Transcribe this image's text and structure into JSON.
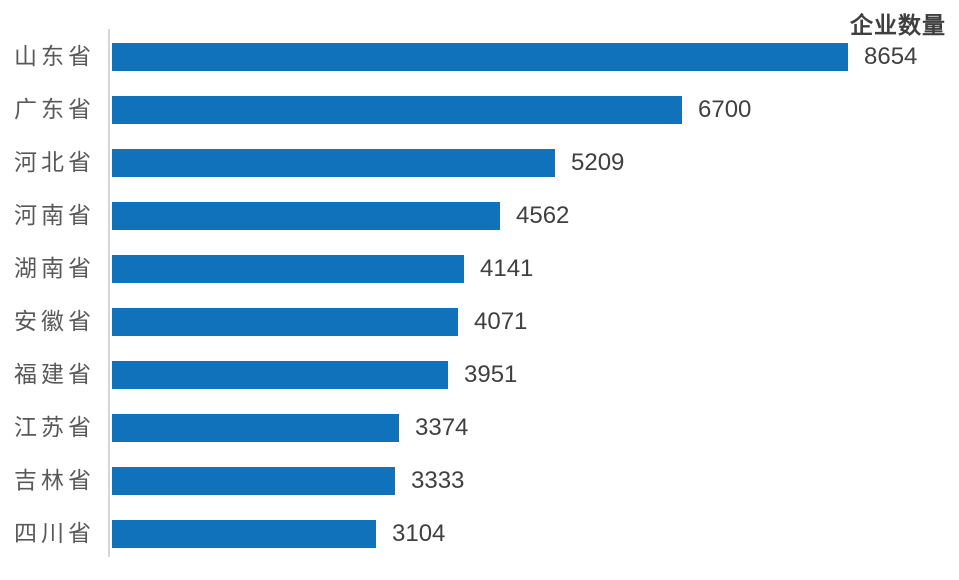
{
  "chart_data": {
    "type": "bar",
    "orientation": "horizontal",
    "title": "企业数量",
    "categories": [
      "山东省",
      "广东省",
      "河北省",
      "河南省",
      "湖南省",
      "安徽省",
      "福建省",
      "江苏省",
      "吉林省",
      "四川省"
    ],
    "values": [
      8654,
      6700,
      5209,
      4562,
      4141,
      4071,
      3951,
      3374,
      3333,
      3104
    ],
    "data_labels": true,
    "legend_position": "top-right",
    "grid": false,
    "axis": "category-axis-left-only",
    "colors": {
      "bar": "#1172bc",
      "category_label": "#595959",
      "value_label": "#404040",
      "title": "#3f3f3f",
      "axis_line": "#d6d6d6",
      "background": "#ffffff"
    }
  }
}
